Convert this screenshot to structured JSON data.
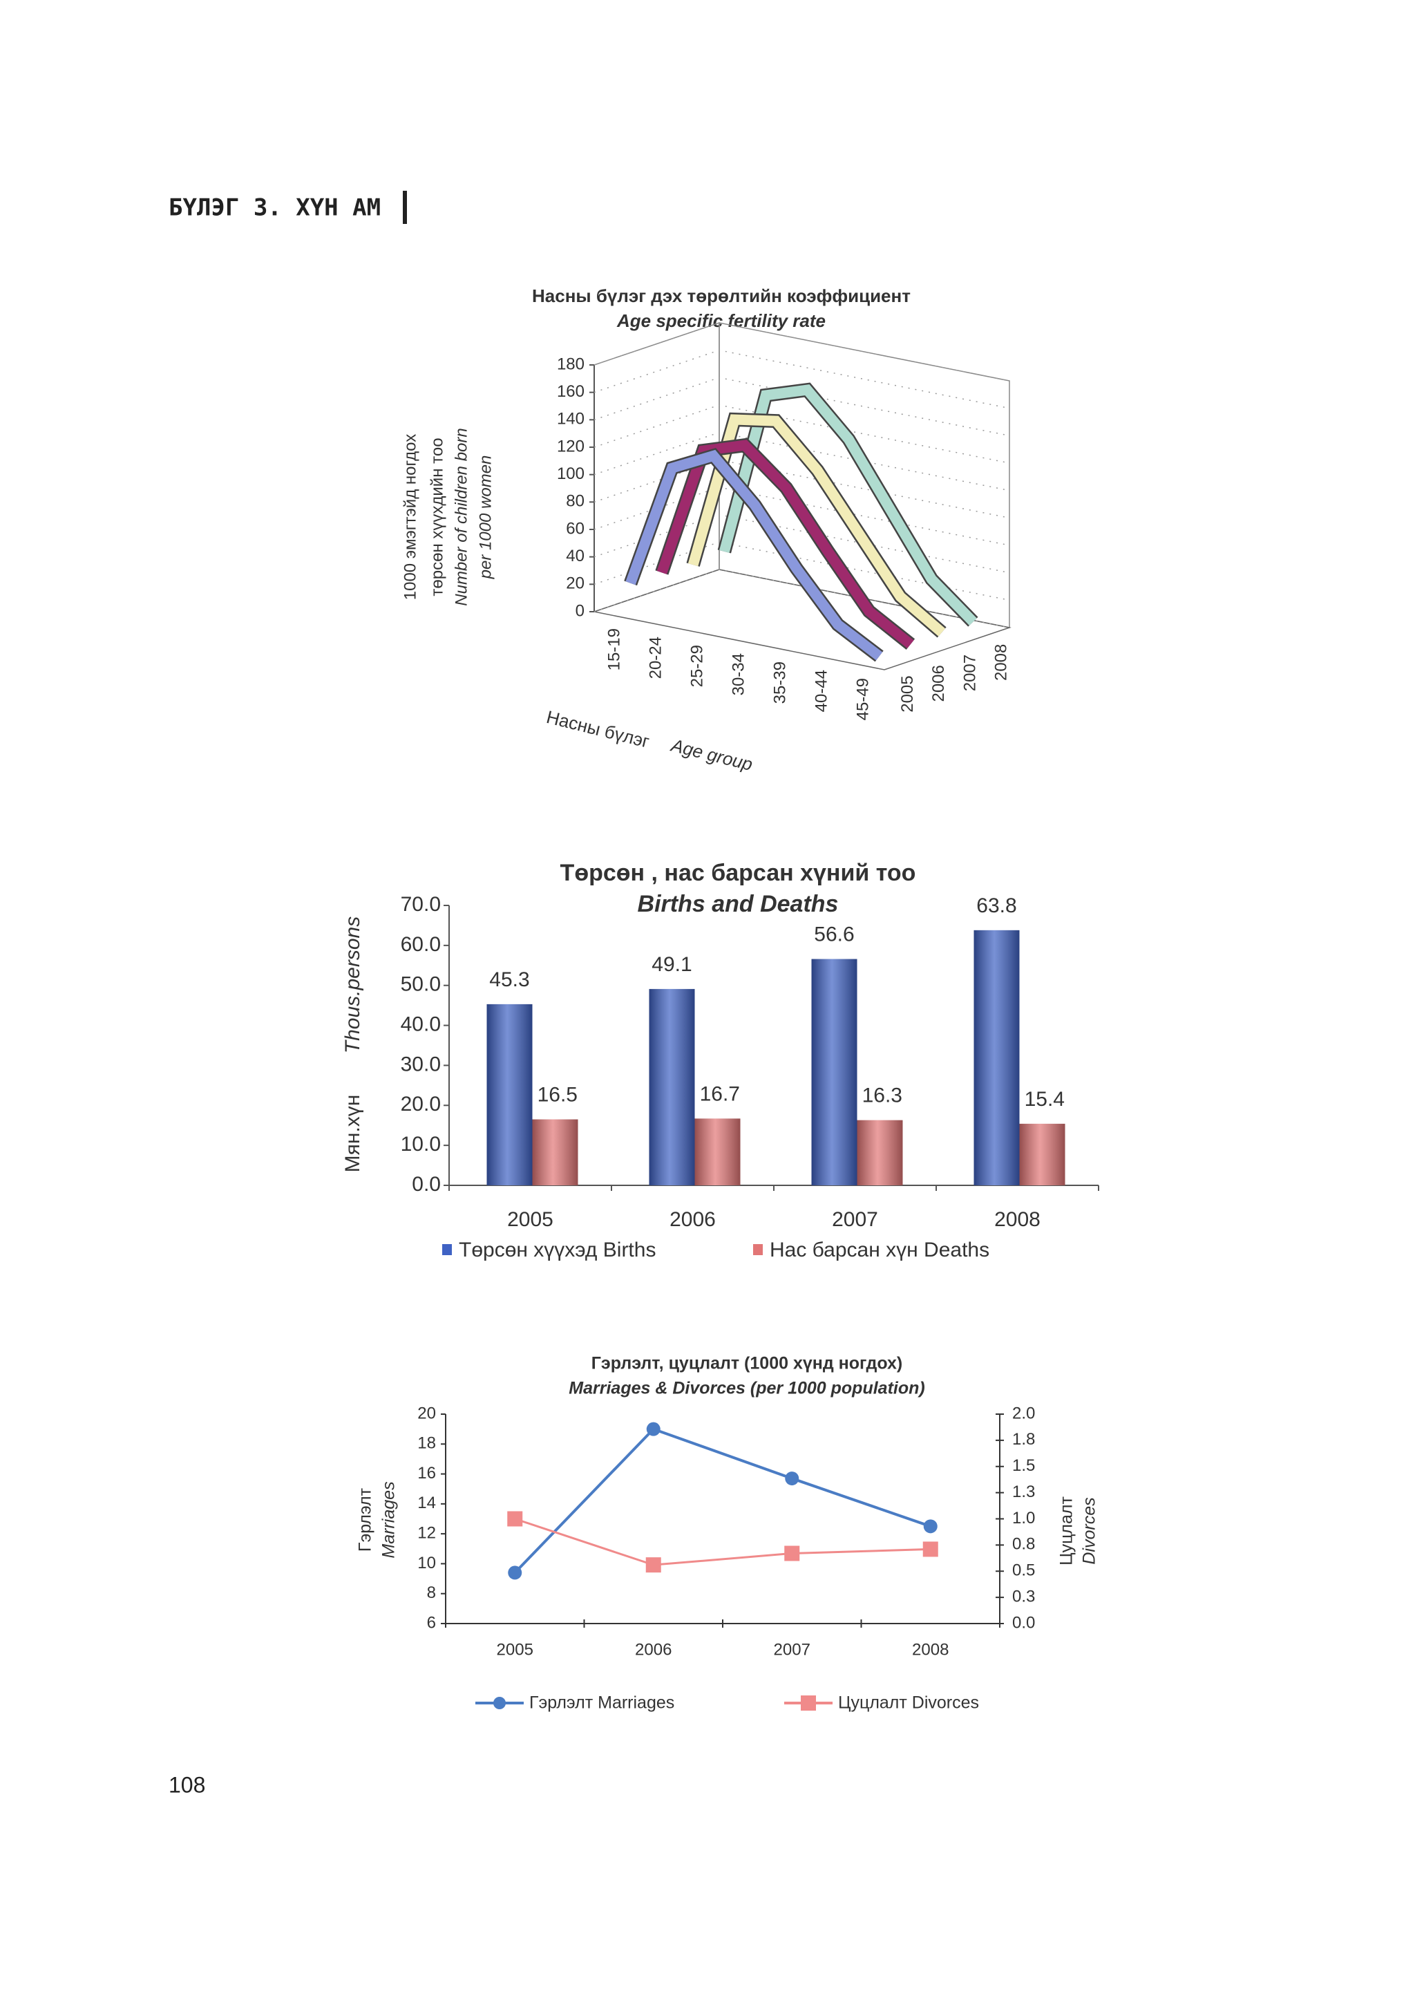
{
  "header": {
    "title": "БҮЛЭГ 3. ХҮН АМ"
  },
  "page_number": "108",
  "chart_data": [
    {
      "type": "line3d",
      "title": "Насны бүлэг дэх төрөлтийн коэффициент",
      "subtitle": "Age specific fertility rate",
      "ylabel": [
        "1000 эмэгтэйд ногдох",
        "төрсөн хүүхдийн тоо",
        "Number of children born",
        "per 1000 women"
      ],
      "xlabel": [
        "Насны бүлэг",
        "Age group"
      ],
      "categories": [
        "15-19",
        "20-24",
        "25-29",
        "30-34",
        "35-39",
        "40-44",
        "45-49"
      ],
      "series": [
        {
          "name": "2005",
          "color": "#8a98dc",
          "values": [
            20,
            110,
            125,
            95,
            55,
            20,
            3
          ]
        },
        {
          "name": "2006",
          "color": "#9e2a6c",
          "values": [
            20,
            115,
            125,
            100,
            60,
            22,
            4
          ]
        },
        {
          "name": "2007",
          "color": "#f2ecb8",
          "values": [
            18,
            130,
            135,
            105,
            65,
            25,
            5
          ]
        },
        {
          "name": "2008",
          "color": "#b0dcd0",
          "values": [
            20,
            140,
            150,
            120,
            75,
            30,
            5
          ]
        }
      ],
      "ylim": [
        0,
        180
      ],
      "yticks": [
        0,
        20,
        40,
        60,
        80,
        100,
        120,
        140,
        160,
        180
      ],
      "grid": true
    },
    {
      "type": "bar",
      "title": "Төрсөн , нас барсан хүний тоо",
      "subtitle": "Births and Deaths",
      "ylabel": [
        "Мян.хүн",
        "Thous.persons"
      ],
      "categories": [
        "2005",
        "2006",
        "2007",
        "2008"
      ],
      "series": [
        {
          "name": "Төрсөн хүүхэд Births",
          "color": "#3f62c4",
          "values": [
            45.3,
            49.1,
            56.6,
            63.8
          ]
        },
        {
          "name": "Нас барсан хүн Deaths",
          "color": "#e27676",
          "values": [
            16.5,
            16.7,
            16.3,
            15.4
          ]
        }
      ],
      "ylim": [
        0,
        70
      ],
      "yticks": [
        {
          "value": 0,
          "label": "0.0"
        },
        {
          "value": 10,
          "label": "10.0"
        },
        {
          "value": 20,
          "label": "20.0"
        },
        {
          "value": 30,
          "label": "30.0"
        },
        {
          "value": 40,
          "label": "40.0"
        },
        {
          "value": 50,
          "label": "50.0"
        },
        {
          "value": 60,
          "label": "60.0"
        },
        {
          "value": 70,
          "label": "70.0"
        }
      ],
      "grid": false
    },
    {
      "type": "line",
      "title": "Гэрлэлт, цуцлалт (1000 хүнд ногдох)",
      "subtitle": "Marriages & Divorces (per 1000 population)",
      "ylabel": [
        "Гэрлэлт",
        "Marriages"
      ],
      "y2label": [
        "Цуцлалт",
        "Divorces"
      ],
      "categories": [
        "2005",
        "2006",
        "2007",
        "2008"
      ],
      "series": [
        {
          "name": "Гэрлэлт Marriages",
          "color": "#4a7cc4",
          "marker": "circle",
          "values": [
            9.4,
            19.0,
            15.7,
            12.5
          ]
        },
        {
          "name": "Цуцлалт Divorces",
          "color": "#f08a8a",
          "marker": "square",
          "axis": "y2",
          "values": [
            1.0,
            0.56,
            0.67,
            0.71
          ]
        }
      ],
      "ylim": [
        6,
        20
      ],
      "yticks": [
        6,
        8,
        10,
        12,
        14,
        16,
        18,
        20
      ],
      "y2lim": [
        0,
        2
      ],
      "y2ticks": [
        {
          "value": 0,
          "label": "0.0"
        },
        {
          "value": 0.25,
          "label": "0.3"
        },
        {
          "value": 0.5,
          "label": "0.5"
        },
        {
          "value": 0.75,
          "label": "0.8"
        },
        {
          "value": 1,
          "label": "1.0"
        },
        {
          "value": 1.25,
          "label": "1.3"
        },
        {
          "value": 1.5,
          "label": "1.5"
        },
        {
          "value": 1.75,
          "label": "1.8"
        },
        {
          "value": 2,
          "label": "2.0"
        }
      ],
      "grid": false
    }
  ]
}
